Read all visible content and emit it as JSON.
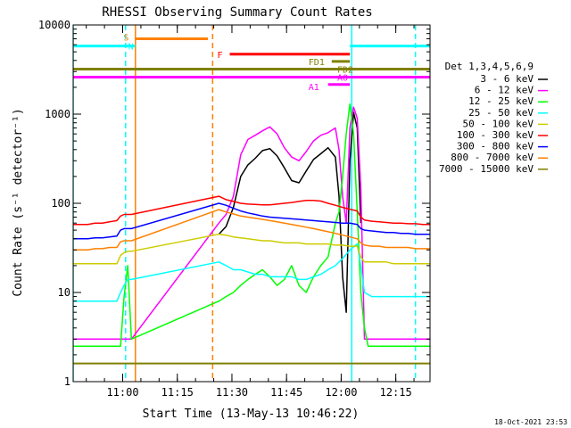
{
  "chart_data": {
    "type": "line",
    "title": "RHESSI Observing Summary Count Rates",
    "xlabel": "Start Time (13-May-13 10:46:22)",
    "ylabel": "Count Rate (s⁻¹ detector⁻¹)",
    "x_unit": "minutes since 10:46:22",
    "xlim": [
      0,
      98
    ],
    "ylim": [
      1,
      10000
    ],
    "y_scale": "log",
    "x_ticks": [
      {
        "value": 13.6,
        "label": "11:00"
      },
      {
        "value": 28.6,
        "label": "11:15"
      },
      {
        "value": 43.6,
        "label": "11:30"
      },
      {
        "value": 58.6,
        "label": "11:45"
      },
      {
        "value": 73.6,
        "label": "12:00"
      },
      {
        "value": 88.6,
        "label": "12:15"
      }
    ],
    "y_ticks": [
      {
        "value": 1,
        "label": "1"
      },
      {
        "value": 10,
        "label": "10"
      },
      {
        "value": 100,
        "label": "100"
      },
      {
        "value": 1000,
        "label": "1000"
      },
      {
        "value": 10000,
        "label": "10000"
      }
    ],
    "legend_title": "Det 1,3,4,5,6,9",
    "legend_position": "right",
    "series": [
      {
        "name": "3 - 6 keV",
        "color": "#000000",
        "x": [
          40,
          42,
          44,
          46,
          48,
          50,
          52,
          54,
          56,
          58,
          60,
          62,
          64,
          66,
          68,
          70,
          72,
          73,
          74,
          75,
          76,
          77,
          78,
          79
        ],
        "y": [
          45,
          55,
          90,
          200,
          270,
          320,
          390,
          410,
          340,
          250,
          180,
          170,
          230,
          310,
          360,
          420,
          330,
          120,
          15,
          6,
          300,
          1050,
          700,
          60
        ]
      },
      {
        "name": "6 - 12 keV",
        "color": "#ff00ff",
        "x": [
          0,
          2,
          4,
          6,
          8,
          10,
          12,
          13,
          14,
          15,
          16,
          40,
          42,
          44,
          46,
          48,
          50,
          52,
          54,
          56,
          58,
          60,
          62,
          64,
          66,
          68,
          70,
          72,
          73,
          74,
          75,
          76,
          77,
          78,
          79,
          80,
          82,
          84,
          86,
          88,
          90,
          92,
          94,
          96,
          98
        ],
        "y": [
          3,
          3,
          3,
          3,
          3,
          3,
          3,
          3,
          3,
          3,
          3,
          60,
          75,
          120,
          350,
          520,
          580,
          650,
          720,
          600,
          420,
          330,
          300,
          380,
          500,
          580,
          620,
          700,
          400,
          120,
          60,
          700,
          1200,
          900,
          150,
          3,
          3,
          3,
          3,
          3,
          3,
          3,
          3,
          3,
          3
        ]
      },
      {
        "name": "12 - 25 keV",
        "color": "#00ff00",
        "x": [
          0,
          2,
          4,
          6,
          8,
          10,
          12,
          13,
          14,
          15,
          16,
          40,
          42,
          44,
          46,
          48,
          50,
          52,
          54,
          56,
          58,
          60,
          62,
          64,
          66,
          68,
          70,
          72,
          73,
          74,
          75,
          76,
          77,
          78,
          79,
          80,
          81,
          82,
          84,
          86,
          88,
          90,
          92,
          94,
          96,
          98
        ],
        "y": [
          2.5,
          2.5,
          2.5,
          2.5,
          2.5,
          2.5,
          2.5,
          2.5,
          9,
          20,
          3,
          8,
          9,
          10,
          12,
          14,
          16,
          18,
          15,
          12,
          14,
          20,
          12,
          10,
          15,
          20,
          25,
          60,
          80,
          200,
          600,
          1300,
          600,
          80,
          10,
          4,
          2.5,
          2.5,
          2.5,
          2.5,
          2.5,
          2.5,
          2.5,
          2.5,
          2.5,
          2.5
        ]
      },
      {
        "name": "25 - 50 keV",
        "color": "#00ffff",
        "x": [
          0,
          2,
          4,
          6,
          8,
          10,
          12,
          13,
          14,
          15,
          16,
          40,
          42,
          44,
          46,
          48,
          50,
          52,
          54,
          56,
          58,
          60,
          62,
          64,
          66,
          68,
          70,
          72,
          74,
          76,
          78,
          79,
          80,
          82,
          84,
          86,
          88,
          90,
          92,
          94,
          96,
          98
        ],
        "y": [
          8,
          8,
          8,
          8,
          8,
          8,
          8,
          10,
          12,
          14,
          14,
          22,
          20,
          18,
          18,
          17,
          16,
          16,
          15,
          15,
          15,
          15,
          14,
          14,
          15,
          16,
          18,
          20,
          24,
          30,
          35,
          20,
          10,
          9,
          9,
          9,
          9,
          9,
          9,
          9,
          9,
          9
        ]
      },
      {
        "name": "50 - 100 keV",
        "color": "#cccc00",
        "x": [
          0,
          2,
          4,
          6,
          8,
          10,
          12,
          13,
          14,
          15,
          16,
          40,
          42,
          44,
          46,
          48,
          50,
          52,
          54,
          56,
          58,
          60,
          62,
          64,
          66,
          68,
          70,
          72,
          74,
          76,
          78,
          79,
          80,
          82,
          84,
          86,
          88,
          90,
          92,
          94,
          96,
          98
        ],
        "y": [
          21,
          21,
          21,
          21,
          21,
          21,
          21,
          26,
          28,
          29,
          29,
          45,
          44,
          42,
          41,
          40,
          39,
          38,
          38,
          37,
          36,
          36,
          36,
          35,
          35,
          35,
          35,
          34,
          34,
          33,
          33,
          25,
          22,
          22,
          22,
          22,
          21,
          21,
          21,
          21,
          21,
          21
        ]
      },
      {
        "name": "100 - 300 keV",
        "color": "#ff0000",
        "x": [
          0,
          2,
          4,
          6,
          8,
          10,
          12,
          13,
          14,
          15,
          16,
          40,
          42,
          44,
          46,
          48,
          50,
          52,
          54,
          56,
          58,
          60,
          62,
          64,
          66,
          68,
          70,
          72,
          74,
          76,
          78,
          79,
          80,
          82,
          84,
          86,
          88,
          90,
          92,
          94,
          96,
          98
        ],
        "y": [
          58,
          58,
          58,
          60,
          60,
          62,
          64,
          72,
          75,
          75,
          75,
          120,
          110,
          105,
          100,
          98,
          97,
          96,
          96,
          98,
          100,
          102,
          105,
          108,
          108,
          106,
          100,
          95,
          90,
          86,
          82,
          70,
          65,
          63,
          62,
          61,
          60,
          60,
          59,
          59,
          58,
          58
        ]
      },
      {
        "name": "300 - 800 keV",
        "color": "#0000ff",
        "x": [
          0,
          2,
          4,
          6,
          8,
          10,
          12,
          13,
          14,
          15,
          16,
          40,
          42,
          44,
          46,
          48,
          50,
          52,
          54,
          56,
          58,
          60,
          62,
          64,
          66,
          68,
          70,
          72,
          74,
          76,
          78,
          79,
          80,
          82,
          84,
          86,
          88,
          90,
          92,
          94,
          96,
          98
        ],
        "y": [
          40,
          40,
          40,
          41,
          41,
          42,
          43,
          50,
          52,
          52,
          52,
          100,
          95,
          88,
          82,
          78,
          75,
          72,
          70,
          69,
          68,
          67,
          66,
          65,
          64,
          63,
          62,
          61,
          60,
          60,
          58,
          52,
          50,
          49,
          48,
          47,
          47,
          46,
          46,
          45,
          45,
          45
        ]
      },
      {
        "name": "800 - 7000 keV",
        "color": "#ff8000",
        "x": [
          0,
          2,
          4,
          6,
          8,
          10,
          12,
          13,
          14,
          15,
          16,
          40,
          42,
          44,
          46,
          48,
          50,
          52,
          54,
          56,
          58,
          60,
          62,
          64,
          66,
          68,
          70,
          72,
          74,
          76,
          78,
          79,
          80,
          82,
          84,
          86,
          88,
          90,
          92,
          94,
          96,
          98
        ],
        "y": [
          30,
          30,
          30,
          31,
          31,
          32,
          32,
          37,
          38,
          38,
          38,
          85,
          80,
          76,
          72,
          70,
          68,
          66,
          64,
          62,
          60,
          58,
          56,
          54,
          52,
          50,
          48,
          46,
          44,
          42,
          40,
          36,
          34,
          33,
          33,
          32,
          32,
          32,
          32,
          31,
          31,
          31
        ]
      },
      {
        "name": "7000 - 15000 keV",
        "color": "#808000",
        "x": [
          0,
          2,
          4,
          6,
          8,
          10,
          12,
          13,
          14,
          15,
          16,
          40,
          42,
          44,
          46,
          48,
          50,
          52,
          54,
          56,
          58,
          60,
          62,
          64,
          66,
          68,
          70,
          72,
          74,
          76,
          78,
          79,
          80,
          82,
          84,
          86,
          88,
          90,
          92,
          94,
          96,
          98
        ],
        "y": [
          1.6,
          1.6,
          1.6,
          1.6,
          1.6,
          1.6,
          1.6,
          1.6,
          1.6,
          1.6,
          1.6,
          1.6,
          1.6,
          1.6,
          1.6,
          1.6,
          1.6,
          1.6,
          1.6,
          1.6,
          1.6,
          1.6,
          1.6,
          1.6,
          1.6,
          1.6,
          1.6,
          1.6,
          1.6,
          1.6,
          1.6,
          1.6,
          1.6,
          1.6,
          1.6,
          1.6,
          1.6,
          1.6,
          1.6,
          1.6,
          1.6,
          1.6
        ]
      }
    ],
    "flag_bars": [
      {
        "label": "S",
        "color": "#ff8000",
        "x0": 17,
        "x1": 37,
        "y": 7000
      },
      {
        "label": "F",
        "color": "#ff0000",
        "x0": 43,
        "x1": 76,
        "y": 4700
      },
      {
        "label": "FD1",
        "color": "#808000",
        "x0": 71,
        "x1": 76,
        "y": 3900
      },
      {
        "label": "FD2",
        "color": "#808000",
        "x0": 0,
        "x1": 98,
        "y": 3200
      },
      {
        "label": "A0",
        "color": "#ff00ff",
        "x0": 0,
        "x1": 98,
        "y": 2600
      },
      {
        "label": "A1",
        "color": "#ff00ff",
        "x0": 70,
        "x1": 76,
        "y": 2150
      },
      {
        "label": "N",
        "color": "#00ffff",
        "x0": 0,
        "x1": 17,
        "y": 5800
      },
      {
        "label": "",
        "color": "#00ffff",
        "x0": 76,
        "x1": 98,
        "y": 5800
      }
    ],
    "markers": [
      {
        "x": 17.1,
        "color": "#ff8000",
        "style": "solid"
      },
      {
        "x": 38.3,
        "color": "#ff8000",
        "style": "dashed"
      },
      {
        "x": 14.4,
        "color": "#00ffff",
        "style": "dashed"
      },
      {
        "x": 76.5,
        "color": "#00ffff",
        "style": "solid"
      },
      {
        "x": 94.0,
        "color": "#00ffff",
        "style": "dashed"
      },
      {
        "x": 0.0,
        "color": "#00ffff",
        "style": "solid"
      }
    ],
    "timestamp": "18-Oct-2021 23:53"
  }
}
